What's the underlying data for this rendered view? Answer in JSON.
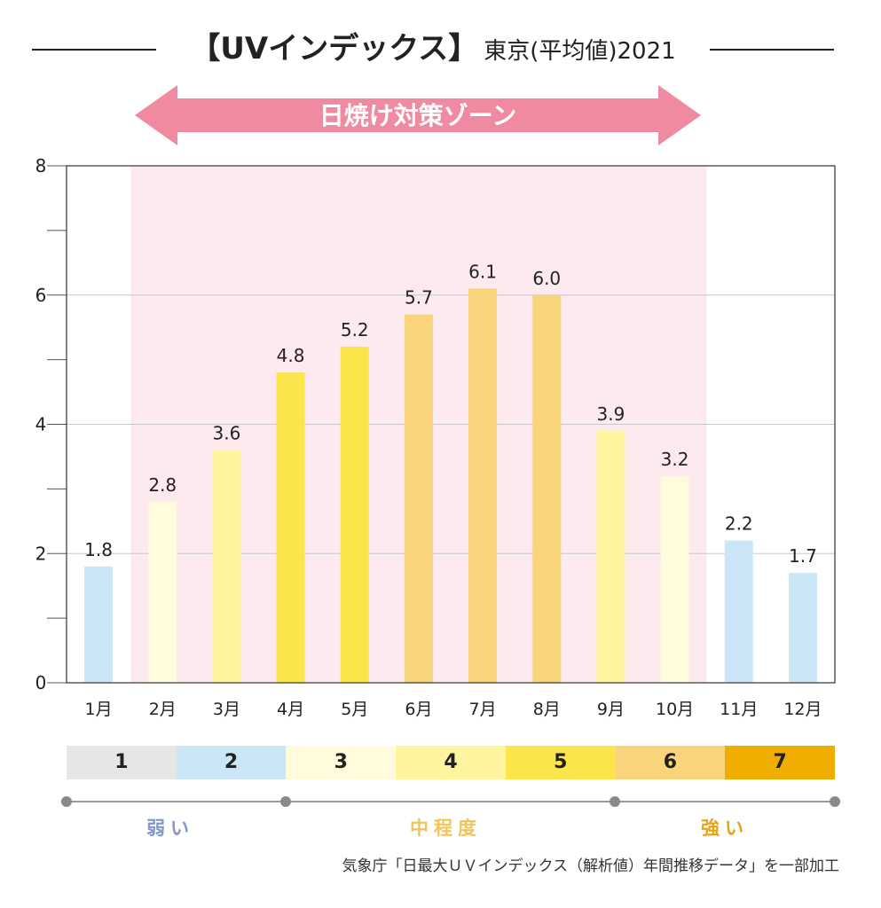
{
  "header": {
    "title_main": "【UVインデックス】",
    "title_sub": "東京(平均値)2021"
  },
  "zone_label": "日焼け対策ゾーン",
  "chart_data": {
    "type": "bar",
    "title": "【UVインデックス】東京(平均値)2021",
    "xlabel": "",
    "ylabel": "",
    "categories": [
      "1月",
      "2月",
      "3月",
      "4月",
      "5月",
      "6月",
      "7月",
      "8月",
      "9月",
      "10月",
      "11月",
      "12月"
    ],
    "values": [
      1.8,
      2.8,
      3.6,
      4.8,
      5.2,
      5.7,
      6.1,
      6.0,
      3.9,
      3.2,
      2.2,
      1.7
    ],
    "value_labels": [
      "1.8",
      "2.8",
      "3.6",
      "4.8",
      "5.2",
      "5.7",
      "6.1",
      "6.0",
      "3.9",
      "3.2",
      "2.2",
      "1.7"
    ],
    "bar_colors": [
      "#cbe7f7",
      "#fffbdc",
      "#fff59e",
      "#fbe44c",
      "#fbe44c",
      "#f9d47d",
      "#f9d47d",
      "#f9d47d",
      "#fff59e",
      "#fffbdc",
      "#cbe7f7",
      "#cbe7f7"
    ],
    "ylim": [
      0,
      8
    ],
    "y_ticks": [
      "0",
      "2",
      "4",
      "6",
      "8"
    ],
    "grid": true,
    "highlight_zone": {
      "from_category": "2月",
      "to_category": "10月",
      "color": "#fdeaee"
    },
    "arrow_color": "#f08aa0"
  },
  "legend": {
    "levels": [
      {
        "label": "1",
        "color": "#e6e6e6"
      },
      {
        "label": "2",
        "color": "#cbe7f7"
      },
      {
        "label": "3",
        "color": "#fffbdc"
      },
      {
        "label": "4",
        "color": "#fff59e"
      },
      {
        "label": "5",
        "color": "#fbe44c"
      },
      {
        "label": "6",
        "color": "#f9d47d"
      },
      {
        "label": "7",
        "color": "#efad00"
      }
    ],
    "weak": "弱い",
    "moderate": "中程度",
    "strong": "強い"
  },
  "source": "気象庁「日最大ＵＶインデックス（解析値）年間推移データ」を一部加工"
}
